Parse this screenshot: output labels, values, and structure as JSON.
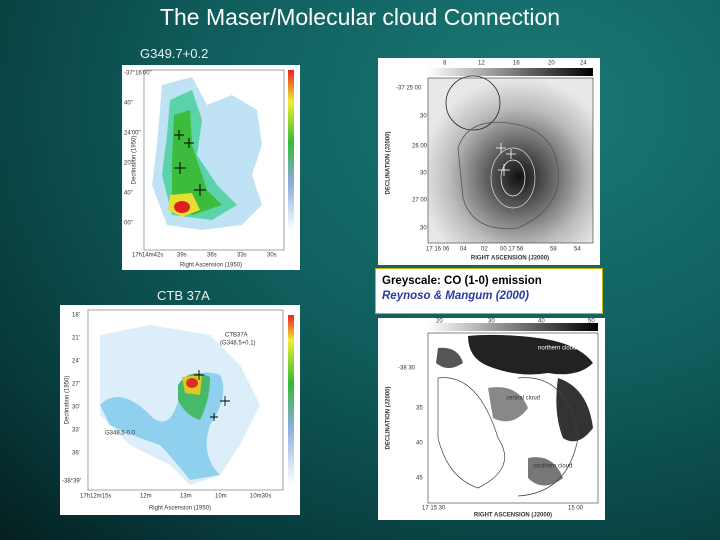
{
  "title": "The Maser/Molecular cloud Connection",
  "panels": [
    {
      "label": "G349.7+0.2",
      "x_axis_label": "Right Ascension (1950)",
      "y_axis_label": "Declination (1950)",
      "yticks": [
        "-37°16'00\"",
        "40\"",
        "24'00\"",
        "20\"",
        "40\"",
        "00\""
      ],
      "xticks": [
        "17h14m42s",
        "39s",
        "36s",
        "33s",
        "30s"
      ]
    },
    {
      "x_axis_label": "RIGHT ASCENSION (J2000)",
      "y_axis_label": "DECLINATION (J2000)",
      "colorbar_ticks": [
        "8",
        "12",
        "16",
        "20",
        "24"
      ],
      "yticks": [
        "-37 25 00",
        "30",
        "26 00",
        "30",
        "27 00",
        "30"
      ],
      "xticks": [
        "17 16 06",
        "04",
        "02",
        "00 17 56",
        "58",
        "54"
      ]
    },
    {
      "label": "CTB 37A",
      "x_axis_label": "Right Ascension (1950)",
      "y_axis_label": "Declination (1950)",
      "annotations": [
        "CTB37A",
        "(G348.5+0.1)",
        "G348.5-0.0"
      ],
      "yticks": [
        "18'",
        "21'",
        "24'",
        "27'",
        "30'",
        "33'",
        "36'",
        "-38°39'"
      ],
      "xticks": [
        "17h12m15s",
        "12m",
        "13m",
        "10m",
        "10m30s"
      ]
    },
    {
      "x_axis_label": "RIGHT ASCENSION (J2000)",
      "y_axis_label": "DECLINATION (J2000)",
      "colorbar_ticks": [
        "20",
        "30",
        "40",
        "50"
      ],
      "annotations": [
        "northern cloud",
        "central cloud",
        "southern cloud"
      ],
      "yticks": [
        "-38 30",
        "35",
        "40",
        "45"
      ],
      "xticks": [
        "17 15 30",
        "15 00"
      ]
    }
  ],
  "caption": {
    "line1": "Greyscale: CO (1-0) emission",
    "line2": "Reynoso & Mangum (2000)"
  }
}
